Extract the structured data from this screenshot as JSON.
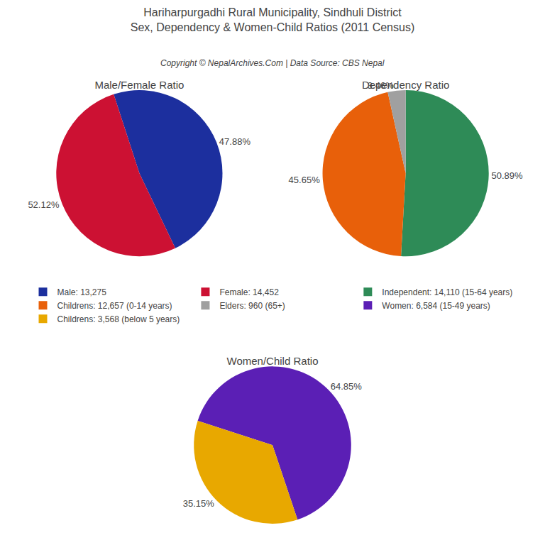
{
  "title": [
    "Hariharpurgadhi Rural Municipality, Sindhuli District",
    "Sex, Dependency & Women-Child Ratios (2011 Census)"
  ],
  "subtitle": "Copyright © NepalArchives.Com | Data Source: CBS Nepal",
  "legend": "center",
  "chart_data": [
    {
      "type": "pie",
      "title": "Male/Female Ratio",
      "categories": [
        "Male: 13,275",
        "Female: 14,452"
      ],
      "values": [
        47.88,
        52.12
      ],
      "value_labels": [
        "47.88%",
        "52.12%"
      ],
      "colors": [
        "#1C2F9E",
        "#CC1133"
      ],
      "data_labels": true
    },
    {
      "type": "pie",
      "title": "Dependency Ratio",
      "categories": [
        "Independent: 14,110 (15-64 years)",
        "Childrens: 12,657 (0-14 years)",
        "Elders: 960 (65+)"
      ],
      "values": [
        50.89,
        45.65,
        3.46
      ],
      "value_labels": [
        "50.89%",
        "45.65%",
        "3.46%"
      ],
      "colors": [
        "#2E8B57",
        "#E8600A",
        "#A0A0A0"
      ],
      "data_labels": true
    },
    {
      "type": "pie",
      "title": "Women/Child Ratio",
      "categories": [
        "Women: 6,584 (15-49 years)",
        "Childrens: 3,568 (below 5 years)"
      ],
      "values": [
        64.85,
        35.15
      ],
      "value_labels": [
        "64.85%",
        "35.15%"
      ],
      "colors": [
        "#5B1FB5",
        "#E8A800"
      ],
      "data_labels": true
    }
  ]
}
